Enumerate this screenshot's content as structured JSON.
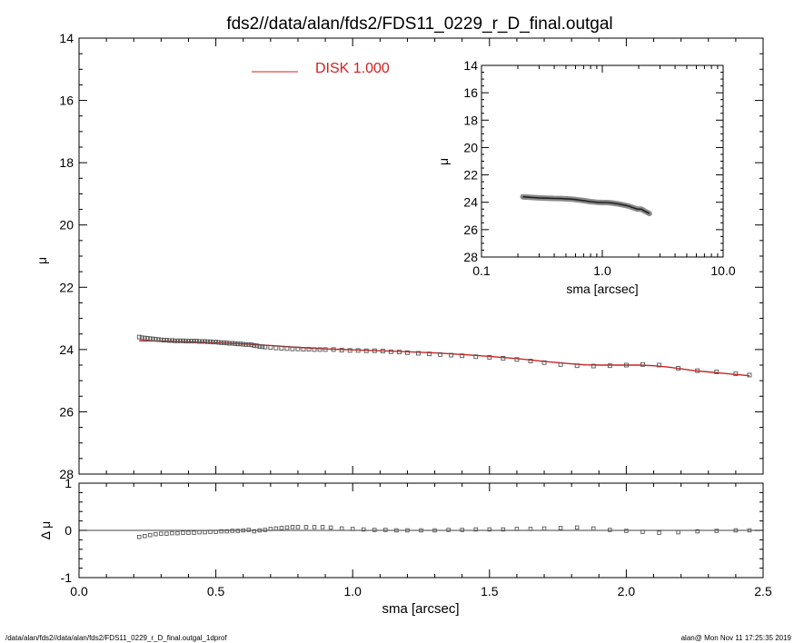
{
  "title": "fds2//data/alan/fds2/FDS11_0229_r_D_final.outgal",
  "footer": {
    "left": "/data/alan/fds2//data/alan/fds2/FDS11_0229_r_D_final.outgal_1dprof",
    "right": "alan@  Mon Nov 11 17:25:35 2019"
  },
  "colors": {
    "model": "#d42020",
    "data": "#555555",
    "axes": "#000000"
  },
  "chart_data": [
    {
      "panel": "main",
      "type": "scatter",
      "ylabel": "μ",
      "xlim": [
        0.0,
        2.5
      ],
      "ylim": [
        28,
        14
      ],
      "yticks": [
        14,
        16,
        18,
        20,
        22,
        24,
        26,
        28
      ],
      "legend": {
        "label": "DISK  1.000",
        "placement": "top-center"
      },
      "series": [
        {
          "name": "data",
          "style": "open-squares",
          "x": [
            0.22,
            0.23,
            0.24,
            0.25,
            0.26,
            0.27,
            0.28,
            0.29,
            0.3,
            0.31,
            0.32,
            0.33,
            0.34,
            0.35,
            0.36,
            0.37,
            0.38,
            0.39,
            0.4,
            0.41,
            0.42,
            0.43,
            0.44,
            0.45,
            0.46,
            0.47,
            0.48,
            0.49,
            0.5,
            0.51,
            0.52,
            0.53,
            0.54,
            0.55,
            0.56,
            0.57,
            0.58,
            0.59,
            0.6,
            0.61,
            0.62,
            0.63,
            0.64,
            0.65,
            0.66,
            0.67,
            0.68,
            0.7,
            0.72,
            0.74,
            0.76,
            0.78,
            0.8,
            0.82,
            0.84,
            0.86,
            0.88,
            0.9,
            0.93,
            0.96,
            0.99,
            1.02,
            1.05,
            1.08,
            1.11,
            1.14,
            1.17,
            1.2,
            1.24,
            1.28,
            1.32,
            1.36,
            1.4,
            1.45,
            1.5,
            1.55,
            1.6,
            1.65,
            1.7,
            1.76,
            1.82,
            1.88,
            1.94,
            2.0,
            2.06,
            2.12,
            2.19,
            2.26,
            2.33,
            2.4,
            2.45
          ],
          "y": [
            23.6,
            23.62,
            23.63,
            23.64,
            23.65,
            23.66,
            23.67,
            23.68,
            23.69,
            23.7,
            23.7,
            23.71,
            23.71,
            23.72,
            23.72,
            23.72,
            23.72,
            23.73,
            23.73,
            23.73,
            23.73,
            23.73,
            23.74,
            23.74,
            23.74,
            23.75,
            23.75,
            23.76,
            23.76,
            23.77,
            23.78,
            23.78,
            23.79,
            23.8,
            23.8,
            23.81,
            23.82,
            23.82,
            23.83,
            23.84,
            23.84,
            23.85,
            23.87,
            23.88,
            23.9,
            23.91,
            23.92,
            23.93,
            23.95,
            23.96,
            23.97,
            23.98,
            23.98,
            23.99,
            23.99,
            24.0,
            24.0,
            24.0,
            24.0,
            24.02,
            24.03,
            24.03,
            24.04,
            24.04,
            24.05,
            24.07,
            24.08,
            24.1,
            24.12,
            24.14,
            24.16,
            24.18,
            24.2,
            24.23,
            24.25,
            24.28,
            24.32,
            24.37,
            24.42,
            24.48,
            24.52,
            24.53,
            24.52,
            24.5,
            24.48,
            24.5,
            24.6,
            24.68,
            24.72,
            24.78,
            24.82
          ]
        },
        {
          "name": "model",
          "style": "line",
          "x": [
            0.22,
            0.3,
            0.4,
            0.5,
            0.6,
            0.7,
            0.8,
            0.9,
            1.0,
            1.1,
            1.2,
            1.3,
            1.4,
            1.5,
            1.6,
            1.7,
            1.75,
            1.8,
            1.85,
            1.9,
            1.95,
            2.0,
            2.05,
            2.1,
            2.15,
            2.2,
            2.25,
            2.3,
            2.35,
            2.4,
            2.45
          ],
          "y": [
            23.72,
            23.73,
            23.75,
            23.78,
            23.82,
            23.87,
            23.93,
            23.98,
            24.01,
            24.04,
            24.07,
            24.11,
            24.16,
            24.22,
            24.29,
            24.38,
            24.42,
            24.46,
            24.49,
            24.5,
            24.5,
            24.5,
            24.5,
            24.52,
            24.56,
            24.62,
            24.68,
            24.72,
            24.76,
            24.8,
            24.84
          ]
        }
      ]
    },
    {
      "panel": "inset",
      "type": "line",
      "xlabel": "sma [arcsec]",
      "ylabel": "μ",
      "xscale": "log",
      "xlim": [
        0.1,
        10.0
      ],
      "xticklabels": [
        "0.1",
        "1.0",
        "10.0"
      ],
      "ylim": [
        28,
        14
      ],
      "yticks": [
        14,
        16,
        18,
        20,
        22,
        24,
        26,
        28
      ],
      "series": [
        {
          "style": "thick-gray-line",
          "x": [
            0.22,
            0.26,
            0.3,
            0.35,
            0.4,
            0.45,
            0.5,
            0.55,
            0.6,
            0.7,
            0.8,
            0.9,
            1.0,
            1.1,
            1.2,
            1.35,
            1.5,
            1.65,
            1.8,
            1.95,
            2.1,
            2.25,
            2.45
          ],
          "y": [
            23.6,
            23.65,
            23.68,
            23.7,
            23.72,
            23.73,
            23.75,
            23.77,
            23.8,
            23.88,
            23.95,
            24.0,
            24.02,
            24.02,
            24.05,
            24.12,
            24.2,
            24.28,
            24.4,
            24.5,
            24.5,
            24.65,
            24.82
          ]
        }
      ]
    },
    {
      "panel": "residual",
      "type": "scatter",
      "xlabel": "sma [arcsec]",
      "ylabel": "Δ μ",
      "xlim": [
        0.0,
        2.5
      ],
      "xticks": [
        0.0,
        0.5,
        1.0,
        1.5,
        2.0,
        2.5
      ],
      "xticklabels": [
        "0.0",
        "0.5",
        "1.0",
        "1.5",
        "2.0",
        "2.5"
      ],
      "ylim": [
        -1,
        1
      ],
      "yticks": [
        -1,
        0,
        1
      ],
      "series": [
        {
          "name": "residual",
          "style": "open-squares",
          "x": [
            0.22,
            0.24,
            0.26,
            0.28,
            0.3,
            0.32,
            0.34,
            0.36,
            0.38,
            0.4,
            0.42,
            0.44,
            0.46,
            0.48,
            0.5,
            0.52,
            0.54,
            0.56,
            0.58,
            0.6,
            0.62,
            0.64,
            0.66,
            0.68,
            0.7,
            0.72,
            0.74,
            0.76,
            0.78,
            0.8,
            0.83,
            0.86,
            0.89,
            0.92,
            0.96,
            1.0,
            1.04,
            1.08,
            1.12,
            1.16,
            1.2,
            1.25,
            1.3,
            1.35,
            1.4,
            1.45,
            1.5,
            1.55,
            1.6,
            1.65,
            1.7,
            1.76,
            1.82,
            1.88,
            1.94,
            2.0,
            2.06,
            2.12,
            2.19,
            2.26,
            2.33,
            2.4,
            2.45
          ],
          "y": [
            -0.14,
            -0.12,
            -0.1,
            -0.08,
            -0.07,
            -0.07,
            -0.06,
            -0.06,
            -0.05,
            -0.05,
            -0.05,
            -0.04,
            -0.04,
            -0.03,
            -0.03,
            -0.02,
            -0.02,
            -0.01,
            -0.01,
            0.0,
            0.01,
            -0.02,
            0.0,
            0.01,
            0.03,
            0.04,
            0.05,
            0.06,
            0.07,
            0.07,
            0.07,
            0.07,
            0.07,
            0.06,
            0.04,
            0.03,
            0.02,
            0.01,
            0.01,
            0.0,
            0.0,
            0.0,
            0.0,
            0.01,
            0.01,
            0.02,
            0.02,
            0.02,
            0.03,
            0.03,
            0.04,
            0.05,
            0.06,
            0.04,
            0.01,
            -0.01,
            -0.03,
            -0.05,
            -0.04,
            -0.02,
            -0.01,
            0.0,
            0.0
          ]
        }
      ]
    }
  ]
}
